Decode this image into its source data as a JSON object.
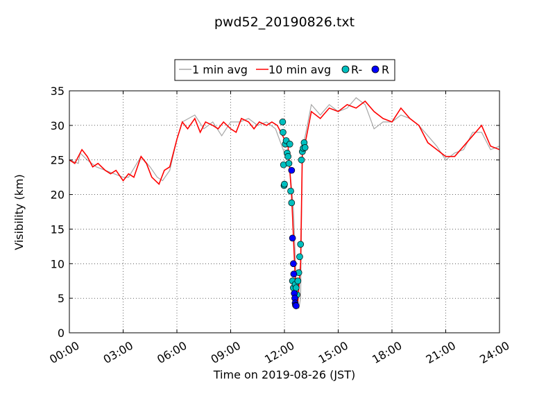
{
  "chart_data": {
    "type": "line",
    "title": "pwd52_20190826.txt",
    "xlabel": "Time on 2019-08-26 (JST)",
    "ylabel": "Visibility (km)",
    "xlim_hours": [
      0,
      24
    ],
    "ylim": [
      0,
      35
    ],
    "x_ticks": [
      {
        "hour": 0,
        "label": "00:00"
      },
      {
        "hour": 3,
        "label": "03:00"
      },
      {
        "hour": 6,
        "label": "06:00"
      },
      {
        "hour": 9,
        "label": "09:00"
      },
      {
        "hour": 12,
        "label": "12:00"
      },
      {
        "hour": 15,
        "label": "15:00"
      },
      {
        "hour": 18,
        "label": "18:00"
      },
      {
        "hour": 21,
        "label": "21:00"
      },
      {
        "hour": 24,
        "label": "24:00"
      }
    ],
    "y_ticks": [
      0,
      5,
      10,
      15,
      20,
      25,
      30,
      35
    ],
    "grid": true,
    "legend_position": "top-center, above plot",
    "legend": [
      {
        "label": "1 min avg",
        "kind": "line",
        "color": "#a6a6a6"
      },
      {
        "label": "10 min avg",
        "kind": "line",
        "color": "#ff0000"
      },
      {
        "label": "R-",
        "kind": "marker",
        "color": "#00bfbf"
      },
      {
        "label": "R",
        "kind": "marker",
        "color": "#0000ff"
      }
    ],
    "series": [
      {
        "name": "1 min avg",
        "color": "#a6a6a6",
        "note": "noisy 1-minute visibility, fluctuates roughly ±3 km around the 10 min avg with spikes up to 35 km",
        "x_hours": [
          0.0,
          0.5,
          0.6,
          1.0,
          1.5,
          2.0,
          2.5,
          3.0,
          3.3,
          4.0,
          4.5,
          4.9,
          5.2,
          5.6,
          6.0,
          6.3,
          7.0,
          7.5,
          8.0,
          8.5,
          9.0,
          9.5,
          10.0,
          10.5,
          11.0,
          11.5,
          12.0,
          12.2,
          12.5,
          12.7,
          12.8,
          12.9,
          13.0,
          13.2,
          13.5,
          14.0,
          14.5,
          15.0,
          15.5,
          16.0,
          16.5,
          17.0,
          17.5,
          18.0,
          18.5,
          19.0,
          19.5,
          20.0,
          20.5,
          21.0,
          21.5,
          22.0,
          22.5,
          23.0,
          23.5,
          24.0
        ],
        "y_km": [
          25.0,
          24.5,
          26.0,
          25.0,
          24.0,
          23.5,
          23.0,
          22.5,
          22.5,
          25.5,
          24.0,
          22.5,
          22.0,
          23.5,
          28.0,
          30.5,
          31.5,
          29.5,
          30.5,
          28.5,
          30.5,
          30.5,
          31.0,
          30.0,
          30.5,
          29.5,
          26.0,
          26.5,
          18.0,
          4.5,
          3.5,
          5.0,
          26.5,
          29.0,
          33.0,
          31.5,
          33.0,
          32.0,
          32.5,
          34.0,
          33.0,
          29.5,
          30.5,
          30.5,
          31.5,
          31.0,
          30.0,
          28.5,
          27.0,
          25.0,
          26.0,
          26.5,
          29.0,
          29.0,
          26.5,
          27.0
        ]
      },
      {
        "name": "10 min avg",
        "color": "#ff0000",
        "x_hours": [
          0.0,
          0.3,
          0.7,
          1.0,
          1.3,
          1.6,
          2.0,
          2.3,
          2.6,
          3.0,
          3.3,
          3.6,
          4.0,
          4.3,
          4.6,
          5.0,
          5.3,
          5.6,
          6.0,
          6.3,
          6.6,
          7.0,
          7.3,
          7.6,
          8.0,
          8.3,
          8.6,
          9.0,
          9.3,
          9.6,
          10.0,
          10.3,
          10.6,
          11.0,
          11.3,
          11.6,
          12.0,
          12.2,
          12.4,
          12.6,
          12.75,
          12.9,
          13.0,
          13.2,
          13.5,
          14.0,
          14.5,
          15.0,
          15.5,
          16.0,
          16.5,
          17.0,
          17.5,
          18.0,
          18.5,
          19.0,
          19.5,
          20.0,
          20.5,
          21.0,
          21.5,
          22.0,
          22.5,
          23.0,
          23.5,
          24.0
        ],
        "y_km": [
          25.0,
          24.5,
          26.5,
          25.5,
          24.0,
          24.5,
          23.5,
          23.0,
          23.5,
          22.0,
          23.0,
          22.5,
          25.5,
          24.5,
          22.5,
          21.5,
          23.5,
          24.0,
          28.0,
          30.5,
          29.5,
          31.0,
          29.0,
          30.5,
          30.0,
          29.5,
          30.5,
          29.5,
          29.0,
          31.0,
          30.5,
          29.5,
          30.5,
          30.0,
          30.5,
          30.0,
          28.0,
          27.0,
          20.0,
          8.0,
          4.5,
          10.0,
          26.0,
          28.0,
          32.0,
          31.0,
          32.5,
          32.0,
          33.0,
          32.5,
          33.5,
          32.0,
          31.0,
          30.5,
          32.5,
          31.0,
          30.0,
          27.5,
          26.5,
          25.5,
          25.5,
          27.0,
          28.5,
          30.0,
          27.0,
          26.5
        ]
      },
      {
        "name": "R-",
        "color": "#00bfbf",
        "x_hours": [
          11.9,
          11.92,
          11.95,
          11.98,
          12.0,
          12.05,
          12.1,
          12.15,
          12.2,
          12.25,
          12.3,
          12.35,
          12.4,
          12.45,
          12.5,
          12.6,
          12.65,
          12.7,
          12.75,
          12.8,
          12.85,
          12.9,
          12.95,
          13.0,
          13.05,
          13.1,
          13.15
        ],
        "y_km": [
          30.5,
          29.0,
          24.3,
          21.3,
          21.5,
          27.3,
          27.8,
          26.0,
          25.5,
          24.5,
          27.3,
          20.5,
          18.8,
          7.5,
          6.5,
          7.0,
          6.5,
          5.5,
          7.5,
          8.7,
          11.0,
          12.8,
          25.0,
          26.2,
          26.7,
          27.5,
          26.8
        ]
      },
      {
        "name": "R",
        "color": "#0000ff",
        "x_hours": [
          12.4,
          12.45,
          12.5,
          12.52,
          12.55,
          12.58,
          12.6,
          12.62,
          12.65
        ],
        "y_km": [
          23.5,
          13.7,
          10.0,
          8.5,
          5.7,
          5.0,
          4.3,
          4.0,
          3.9
        ]
      }
    ]
  }
}
